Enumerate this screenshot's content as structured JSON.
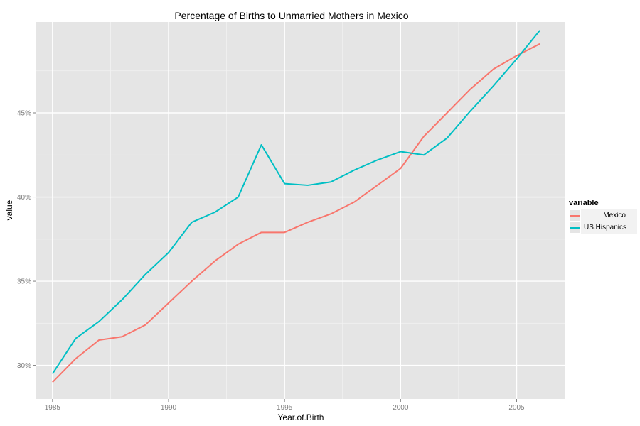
{
  "chart_data": {
    "type": "line",
    "title": "Percentage of Births to Unmarried Mothers in Mexico",
    "xlabel": "Year.of.Birth",
    "ylabel": "value",
    "xlim": [
      1984.3,
      2007.1
    ],
    "ylim": [
      28.0,
      50.4
    ],
    "x_ticks": [
      1985,
      1990,
      1995,
      2000,
      2005
    ],
    "y_ticks": [
      30,
      35,
      40,
      45
    ],
    "y_tick_labels": [
      "30%",
      "35%",
      "40%",
      "45%"
    ],
    "grid": true,
    "legend": {
      "title": "variable",
      "position": "right"
    },
    "series": [
      {
        "name": "Mexico",
        "color": "#F8766D",
        "x": [
          1985,
          1986,
          1987,
          1988,
          1989,
          1990,
          1991,
          1992,
          1993,
          1994,
          1995,
          1996,
          1997,
          1998,
          1999,
          2000,
          2001,
          2002,
          2003,
          2004,
          2005,
          2006
        ],
        "values": [
          29.0,
          30.4,
          31.5,
          31.7,
          32.4,
          33.7,
          35.0,
          36.2,
          37.2,
          37.9,
          37.9,
          38.5,
          39.0,
          39.7,
          40.7,
          41.7,
          43.6,
          45.0,
          46.4,
          47.6,
          48.4,
          49.1
        ]
      },
      {
        "name": "US.Hispanics",
        "color": "#00BFC4",
        "x": [
          1985,
          1986,
          1987,
          1988,
          1989,
          1990,
          1991,
          1992,
          1993,
          1994,
          1995,
          1996,
          1997,
          1998,
          1999,
          2000,
          2001,
          2002,
          2003,
          2004,
          2005,
          2006
        ],
        "values": [
          29.5,
          31.6,
          32.6,
          33.9,
          35.4,
          36.7,
          38.5,
          39.1,
          40.0,
          43.1,
          40.8,
          40.7,
          40.9,
          41.6,
          42.2,
          42.7,
          42.5,
          43.5,
          45.1,
          46.6,
          48.2,
          49.9
        ]
      }
    ]
  }
}
